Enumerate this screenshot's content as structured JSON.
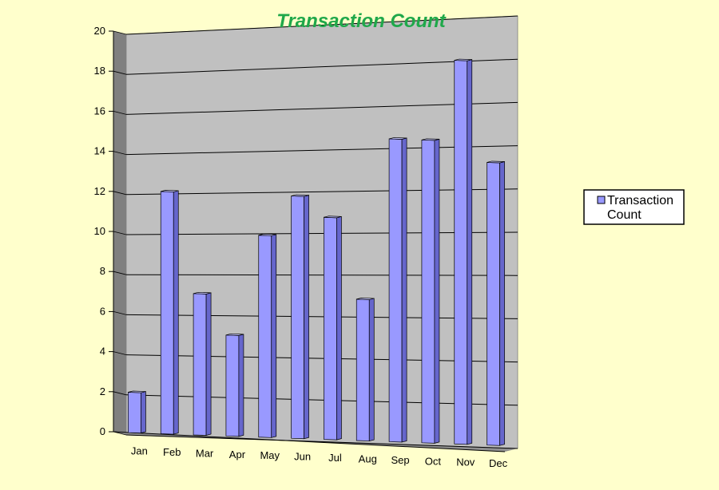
{
  "chart_data": {
    "type": "bar",
    "title": "Transaction Count",
    "categories": [
      "Jan",
      "Feb",
      "Mar",
      "Apr",
      "May",
      "Jun",
      "Jul",
      "Aug",
      "Sep",
      "Oct",
      "Nov",
      "Dec"
    ],
    "series": [
      {
        "name": "Transaction Count",
        "values": [
          2,
          12,
          7,
          5,
          10,
          12,
          11,
          7,
          15,
          15,
          19,
          14
        ]
      }
    ],
    "ylim": [
      0,
      20
    ],
    "yticks": [
      0,
      2,
      4,
      6,
      8,
      10,
      12,
      14,
      16,
      18,
      20
    ],
    "grid": true,
    "legend": "right",
    "style": "3d-column",
    "colors": {
      "background": "#FFFFCC",
      "plot_wall": "#C0C0C0",
      "side_wall": "#808080",
      "floor": "#909090",
      "bar_front": "#9999FF",
      "bar_side": "#6666CC",
      "bar_top": "#C6C6FF",
      "title": "#1FA84A"
    }
  }
}
